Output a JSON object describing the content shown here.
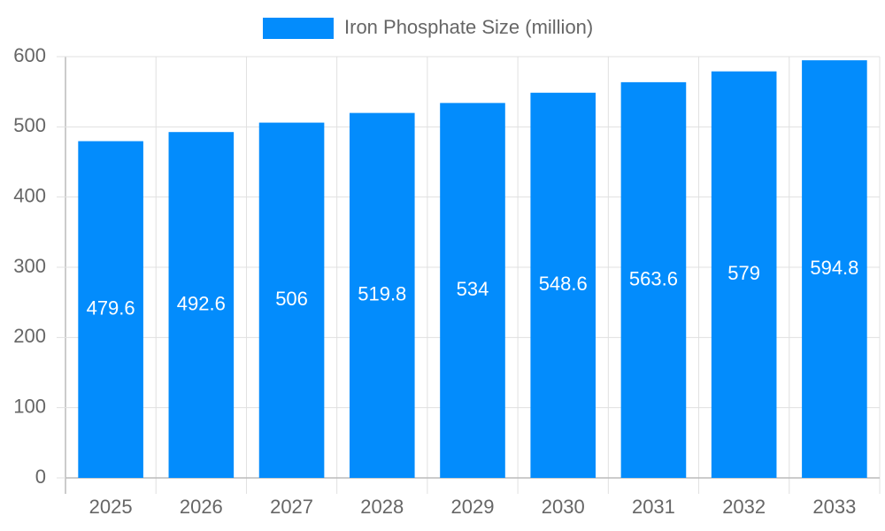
{
  "chart_data": {
    "type": "bar",
    "categories": [
      "2025",
      "2026",
      "2027",
      "2028",
      "2029",
      "2030",
      "2031",
      "2032",
      "2033"
    ],
    "series": [
      {
        "name": "Iron Phosphate Size (million)",
        "color": "#038cfc",
        "values": [
          479.6,
          492.6,
          506,
          519.8,
          534,
          548.6,
          563.6,
          579,
          594.8
        ]
      }
    ],
    "ylim": [
      0,
      600
    ],
    "yticks": [
      0,
      100,
      200,
      300,
      400,
      500,
      600
    ],
    "grid": true,
    "legend": "top",
    "data_labels": true
  }
}
